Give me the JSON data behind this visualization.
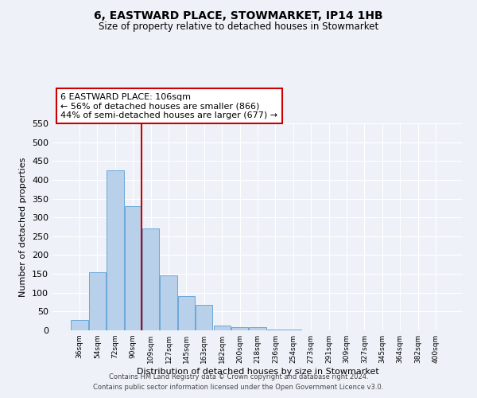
{
  "title": "6, EASTWARD PLACE, STOWMARKET, IP14 1HB",
  "subtitle": "Size of property relative to detached houses in Stowmarket",
  "xlabel": "Distribution of detached houses by size in Stowmarket",
  "ylabel": "Number of detached properties",
  "bar_labels": [
    "36sqm",
    "54sqm",
    "72sqm",
    "90sqm",
    "109sqm",
    "127sqm",
    "145sqm",
    "163sqm",
    "182sqm",
    "200sqm",
    "218sqm",
    "236sqm",
    "254sqm",
    "273sqm",
    "291sqm",
    "309sqm",
    "327sqm",
    "345sqm",
    "364sqm",
    "382sqm",
    "400sqm"
  ],
  "bar_values": [
    28,
    155,
    425,
    330,
    270,
    145,
    90,
    67,
    13,
    8,
    8,
    3,
    2,
    1,
    1,
    1,
    0,
    1,
    0,
    0,
    1
  ],
  "bar_color": "#b8d0ea",
  "bar_edge_color": "#5a9fd4",
  "vline_x_index": 3.5,
  "vline_color": "#cc0000",
  "annotation_text": "6 EASTWARD PLACE: 106sqm\n← 56% of detached houses are smaller (866)\n44% of semi-detached houses are larger (677) →",
  "annotation_box_color": "#ffffff",
  "annotation_box_edge": "#cc0000",
  "ylim": [
    0,
    550
  ],
  "yticks": [
    0,
    50,
    100,
    150,
    200,
    250,
    300,
    350,
    400,
    450,
    500,
    550
  ],
  "background_color": "#eef2f8",
  "grid_color": "#ffffff",
  "footer_line1": "Contains HM Land Registry data © Crown copyright and database right 2024.",
  "footer_line2": "Contains public sector information licensed under the Open Government Licence v3.0."
}
